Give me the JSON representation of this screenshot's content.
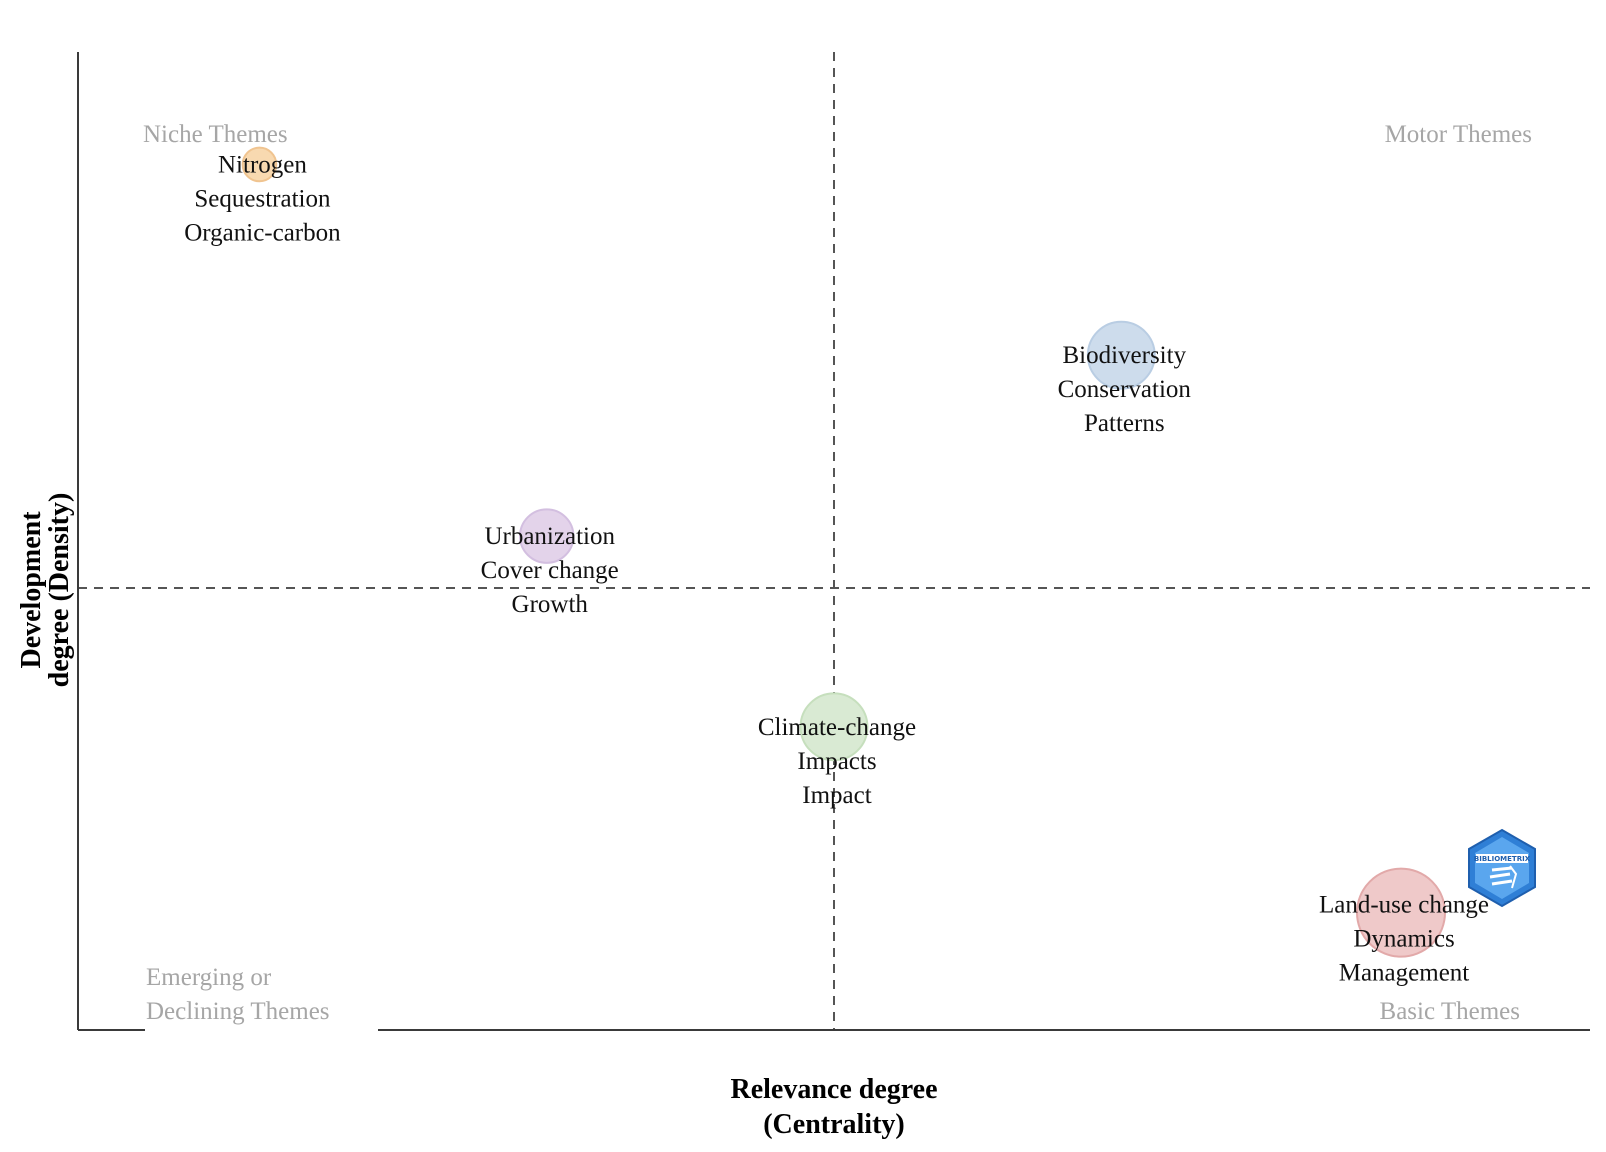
{
  "chart_data": {
    "type": "scatter",
    "title": "",
    "xlabel_lines": [
      "Relevance degree",
      "(Centrality)"
    ],
    "ylabel_lines": [
      "Development",
      "degree (Density)"
    ],
    "quadrants": {
      "top_left": "Niche Themes",
      "top_right": "Motor Themes",
      "bottom_left_lines": [
        "Emerging or",
        "Declining Themes"
      ],
      "bottom_right": "Basic Themes"
    },
    "xlim": [
      0,
      1
    ],
    "ylim": [
      0,
      1
    ],
    "x_divider": 0.5,
    "y_divider": 0.5,
    "clusters": [
      {
        "name": "Nitrogen",
        "terms": [
          "Nitrogen",
          "Sequestration",
          "Organic-carbon"
        ],
        "centrality": 0.12,
        "density": 0.885,
        "size": 0.15,
        "color": "#f8d9b0",
        "stroke": "#f0c490"
      },
      {
        "name": "Biodiversity",
        "terms": [
          "Biodiversity",
          "Conservation",
          "Patterns"
        ],
        "centrality": 0.69,
        "density": 0.69,
        "size": 0.67,
        "color": "#cddcec",
        "stroke": "#b9cde3"
      },
      {
        "name": "Urbanization",
        "terms": [
          "Urbanization",
          "Cover change",
          "Growth"
        ],
        "centrality": 0.31,
        "density": 0.505,
        "size": 0.46,
        "color": "#e3d3ea",
        "stroke": "#d3bfe0"
      },
      {
        "name": "Climate-change",
        "terms": [
          "Climate-change",
          "Impacts",
          "Impact"
        ],
        "centrality": 0.5,
        "density": 0.31,
        "size": 0.67,
        "color": "#d9ead3",
        "stroke": "#c6dfbd"
      },
      {
        "name": "Land-use change",
        "terms": [
          "Land-use change",
          "Dynamics",
          "Management"
        ],
        "centrality": 0.875,
        "density": 0.12,
        "size": 1.0,
        "color": "#efc9c9",
        "stroke": "#e2a9a9"
      }
    ],
    "logo_text": "BIBLIOMETRIX",
    "colors": {
      "quadrant_label": "#a6a6a6",
      "logo": "#2f7fd6"
    }
  }
}
